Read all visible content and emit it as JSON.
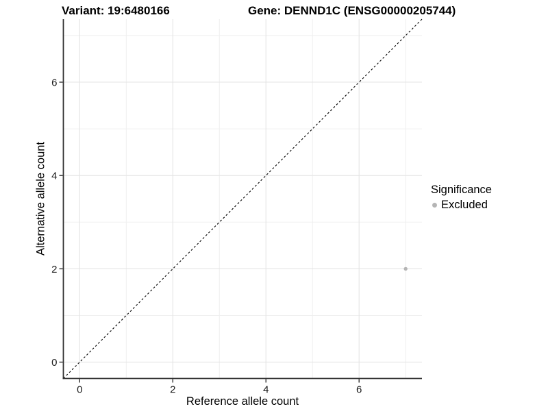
{
  "header": {
    "variant_title": "Variant: 19:6480166",
    "gene_title": "Gene: DENND1C (ENSG00000205744)"
  },
  "legend": {
    "title": "Significance",
    "items": [
      {
        "label": "Excluded",
        "color": "#b5b5b5"
      }
    ]
  },
  "chart_data": {
    "type": "scatter",
    "title": "Variant: 19:6480166   Gene: DENND1C (ENSG00000205744)",
    "xlabel": "Reference allele count",
    "ylabel": "Alternative allele count",
    "xlim": [
      -0.35,
      7.35
    ],
    "ylim": [
      -0.35,
      7.35
    ],
    "x_ticks": [
      0,
      2,
      4,
      6
    ],
    "y_ticks": [
      0,
      2,
      4,
      6
    ],
    "x_minor_gridlines": [
      1,
      3,
      5,
      7
    ],
    "y_minor_gridlines": [
      1,
      3,
      5,
      7
    ],
    "grid": true,
    "legend_position": "right",
    "series": [
      {
        "name": "Excluded",
        "color": "#b5b5b5",
        "points": [
          {
            "x": 7,
            "y": 2
          }
        ]
      }
    ],
    "reference_line": {
      "kind": "identity",
      "style": "dashed",
      "from": [
        -0.35,
        -0.35
      ],
      "to": [
        7.35,
        7.35
      ],
      "color": "#000000"
    },
    "colors": {
      "axis_line": "#2f2f2f",
      "major_grid": "#e4e4e4",
      "minor_grid": "#efefef",
      "point": "#b5b5b5"
    }
  }
}
